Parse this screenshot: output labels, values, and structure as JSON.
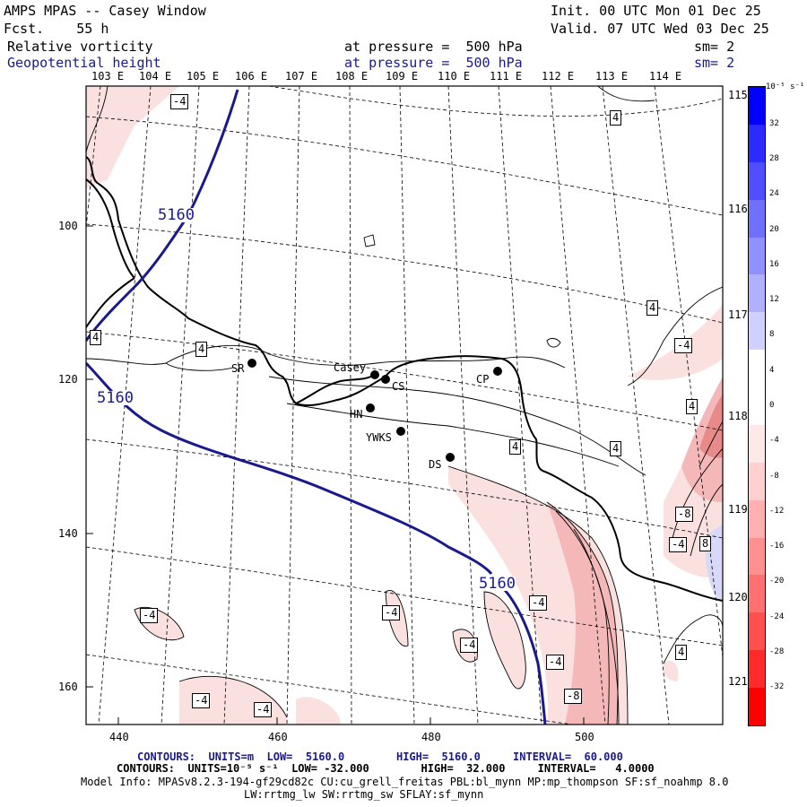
{
  "header": {
    "title": "AMPS MPAS -- Casey Window",
    "fcst": "Fcst.    55 h",
    "init": "Init. 00 UTC Mon 01 Dec 25",
    "valid": "Valid. 07 UTC Wed 03 Dec 25",
    "field1": "Relative vorticity",
    "field2": "Geopotential height",
    "pressure1": "at pressure =  500 hPa",
    "pressure2": "at pressure =  500 hPa",
    "sm1": "sm= 2",
    "sm2": "sm= 2"
  },
  "map": {
    "lon_labels": [
      "103 E",
      "104 E",
      "105 E",
      "106 E",
      "107 E",
      "108 E",
      "109 E",
      "110 E",
      "111 E",
      "112 E",
      "113 E",
      "114 E"
    ],
    "lat_labels_right": [
      "115 E",
      "116 E",
      "117 E",
      "118 E",
      "119 E",
      "120 E",
      "121 E"
    ],
    "x_ticks": [
      "440",
      "460",
      "480",
      "500"
    ],
    "y_ticks": [
      "100",
      "120",
      "140",
      "160"
    ],
    "height_contour_labels": [
      "5160",
      "5160",
      "5160"
    ],
    "vort_labels_pos": [
      "4",
      "4",
      "4",
      "4",
      "4",
      "4",
      "4",
      "4",
      "4"
    ],
    "vort_labels_neg": [
      "-4",
      "-4",
      "-4",
      "-4",
      "-4",
      "-4",
      "-4",
      "-4",
      "-4",
      "-4",
      "-4",
      "-8",
      "-8",
      "8"
    ],
    "stations": [
      "SR",
      "Casey",
      "CS",
      "CP",
      "HN",
      "YWKS",
      "DS"
    ],
    "colors": {
      "height_contour": "#1a1a8c",
      "coast": "#000000",
      "neg_fill": "#f7c8c8",
      "pos_fill": "#d8d8f8"
    }
  },
  "colorbar": {
    "unit": "10⁻⁵ s⁻¹",
    "ticks": [
      "32",
      "28",
      "24",
      "20",
      "16",
      "12",
      "8",
      "4",
      "0",
      "-4",
      "-8",
      "-12",
      "-16",
      "-20",
      "-24",
      "-28",
      "-32"
    ],
    "colors": [
      "#0000ff",
      "#2b2bff",
      "#4f4fff",
      "#7070ff",
      "#9090ff",
      "#b0b0ff",
      "#d0d0ff",
      "#ffffff",
      "#ffffff",
      "#ffe8e8",
      "#ffd0d0",
      "#ffb0b0",
      "#ff9090",
      "#ff7070",
      "#ff5050",
      "#ff2b2b",
      "#ff0000"
    ]
  },
  "footer": {
    "line1": "CONTOURS:  UNITS=m  LOW=  5160.0        HIGH=  5160.0     INTERVAL=  60.000",
    "line2": "CONTOURS:  UNITS=10⁻⁵ s⁻¹  LOW= -32.000        HIGH=  32.000     INTERVAL=   4.0000",
    "line3": "Model Info: MPASv8.2.3-194-gf29cd82c CU:cu_grell_freitas PBL:bl_mynn MP:mp_thompson SF:sf_noahmp 8.0",
    "line4": "LW:rrtmg_lw SW:rrtmg_sw SFLAY:sf_mynn"
  }
}
